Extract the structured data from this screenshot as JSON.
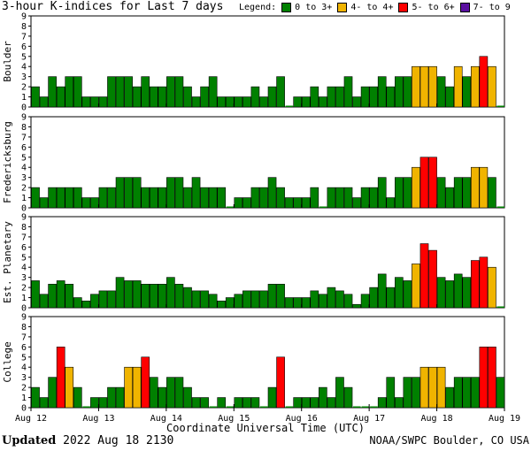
{
  "title": "3-hour K-indices for Last 7 days",
  "legend": {
    "title": "Legend:",
    "items": [
      {
        "label": "0 to 3+",
        "color": "#008000"
      },
      {
        "label": "4- to 4+",
        "color": "#f0b400"
      },
      {
        "label": "5- to 6+",
        "color": "#ff0000"
      },
      {
        "label": "7- to 9",
        "color": "#5a0fa0"
      }
    ]
  },
  "xlabel": "Coordinate Universal Time (UTC)",
  "footer": {
    "updated_label": "Updated",
    "updated_value": "2022 Aug 18 2130",
    "credit": "NOAA/SWPC Boulder, CO USA"
  },
  "chart_data": {
    "type": "bar",
    "x_ticks": [
      "Aug 12",
      "Aug 13",
      "Aug 14",
      "Aug 15",
      "Aug 16",
      "Aug 17",
      "Aug 18",
      "Aug 19"
    ],
    "ylim": [
      0,
      9
    ],
    "y_ticks": [
      0,
      1,
      2,
      3,
      4,
      5,
      6,
      7,
      8,
      9
    ],
    "bars_per_day": 8,
    "panels": [
      {
        "name": "Boulder",
        "values": [
          2,
          1,
          3,
          2,
          3,
          3,
          1,
          1,
          1,
          3,
          3,
          3,
          2,
          3,
          2,
          2,
          3,
          3,
          2,
          1,
          2,
          3,
          1,
          1,
          1,
          1,
          2,
          1,
          2,
          3,
          0,
          1,
          1,
          2,
          1,
          2,
          2,
          3,
          1,
          2,
          2,
          3,
          2,
          3,
          3,
          4,
          4,
          4,
          3,
          2,
          4,
          3,
          4,
          5,
          4,
          0
        ]
      },
      {
        "name": "Fredericksburg",
        "values": [
          2,
          1,
          2,
          2,
          2,
          2,
          1,
          1,
          2,
          2,
          3,
          3,
          3,
          2,
          2,
          2,
          3,
          3,
          2,
          3,
          2,
          2,
          2,
          0,
          1,
          1,
          2,
          2,
          3,
          2,
          1,
          1,
          1,
          2,
          0,
          2,
          2,
          2,
          1,
          2,
          2,
          3,
          1,
          3,
          3,
          4,
          5,
          5,
          3,
          2,
          3,
          3,
          4,
          4,
          3,
          0
        ]
      },
      {
        "name": "Est. Planetary",
        "values": [
          2.67,
          1.33,
          2.33,
          2.67,
          2.33,
          1,
          0.67,
          1.33,
          1.67,
          1.67,
          3,
          2.67,
          2.67,
          2.33,
          2.33,
          2.33,
          3,
          2.33,
          2,
          1.67,
          1.67,
          1.33,
          0.67,
          1,
          1.33,
          1.67,
          1.67,
          1.67,
          2.33,
          2.33,
          1,
          1,
          1,
          1.67,
          1.33,
          2,
          1.67,
          1.33,
          0.33,
          1.33,
          2,
          3.33,
          2,
          3,
          2.67,
          4.33,
          6.33,
          5.67,
          3,
          2.67,
          3.33,
          3,
          4.67,
          5,
          4,
          0
        ]
      },
      {
        "name": "College",
        "values": [
          2,
          1,
          3,
          6,
          4,
          2,
          0,
          1,
          1,
          2,
          2,
          4,
          4,
          5,
          3,
          2,
          3,
          3,
          2,
          1,
          1,
          0,
          1,
          0,
          1,
          1,
          1,
          0,
          2,
          5,
          0,
          1,
          1,
          1,
          2,
          1,
          3,
          2,
          0,
          0,
          0,
          1,
          3,
          1,
          3,
          3,
          4,
          4,
          4,
          2,
          3,
          3,
          3,
          6,
          6,
          3
        ]
      }
    ]
  }
}
